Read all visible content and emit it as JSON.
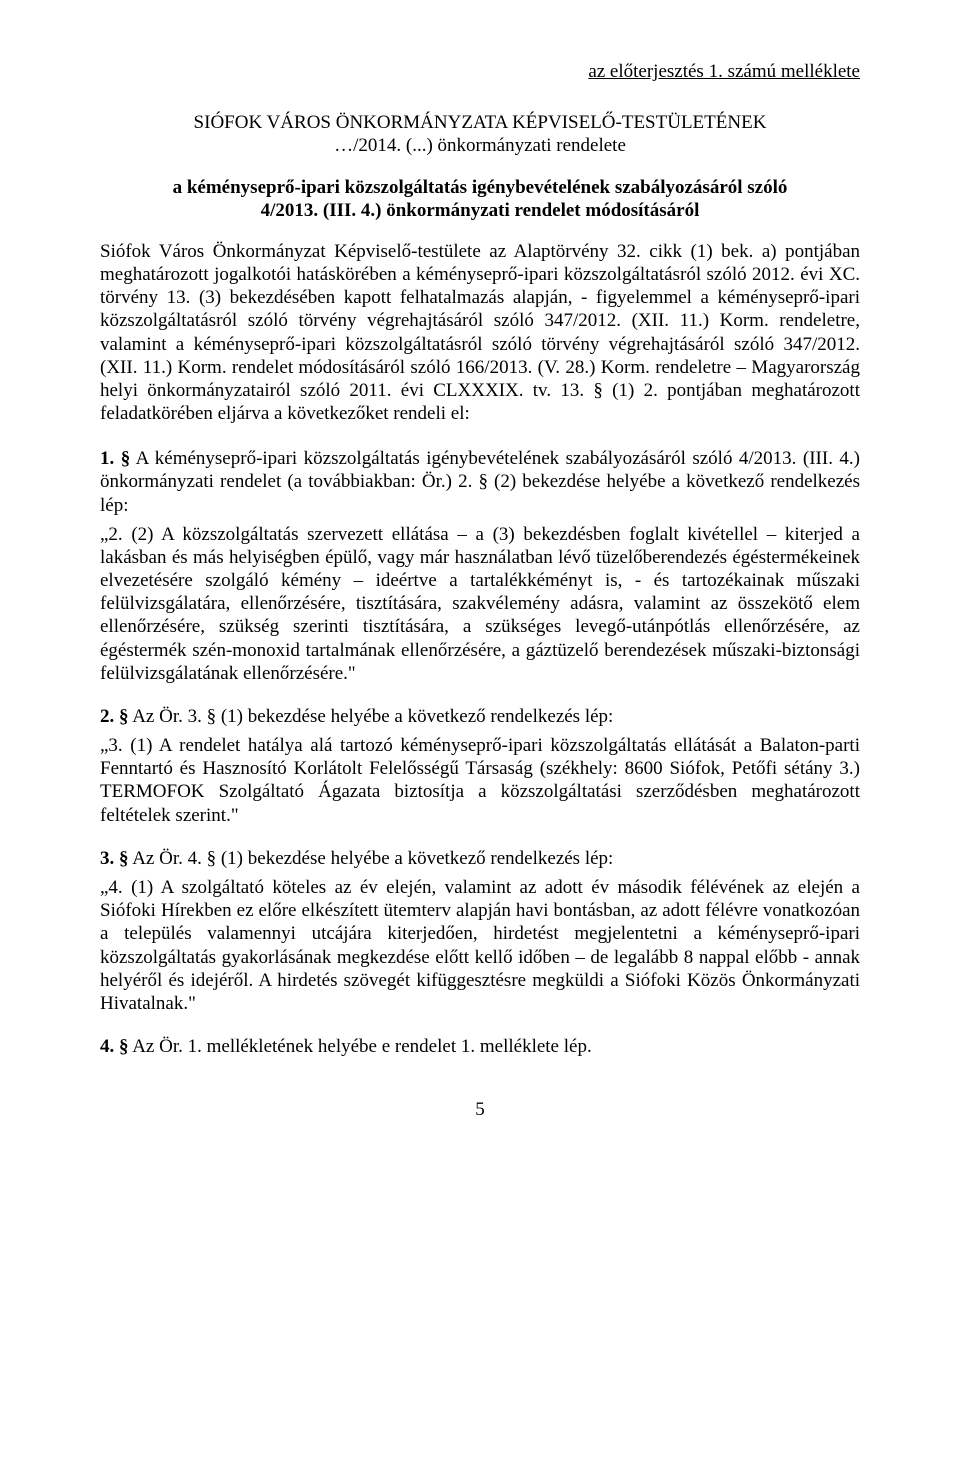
{
  "attachment": "az előterjesztés 1. számú melléklete",
  "title_line1": "SIÓFOK VÁROS ÖNKORMÁNYZATA KÉPVISELŐ-TESTÜLETÉNEK",
  "title_line2": "…/2014. (...) önkormányzati rendelete",
  "subtitle_line1": "a kéményseprő-ipari közszolgáltatás igénybevételének szabályozásáról szóló",
  "subtitle_line2": "4/2013. (III. 4.) önkormányzati rendelet módosításáról",
  "preamble": "Siófok Város Önkormányzat Képviselő-testülete az Alaptörvény 32. cikk (1) bek. a) pontjában meghatározott jogalkotói hatáskörében a kéményseprő-ipari közszolgáltatásról szóló 2012. évi XC. törvény 13. (3) bekezdésében kapott felhatalmazás alapján, - figyelemmel a kéményseprő-ipari közszolgáltatásról szóló törvény végrehajtásáról szóló 347/2012. (XII. 11.) Korm. rendeletre, valamint a kéményseprő-ipari közszolgáltatásról szóló törvény végrehajtásáról szóló 347/2012. (XII. 11.) Korm. rendelet módosításáról szóló 166/2013. (V. 28.) Korm. rendeletre – Magyarország helyi önkormányzatairól szóló 2011. évi CLXXXIX. tv. 13. § (1) 2. pontjában meghatározott feladatkörében eljárva a következőket rendeli el:",
  "item1_number": "1. §",
  "item1_text": " A kéményseprő-ipari közszolgáltatás igénybevételének szabályozásáról szóló 4/2013. (III. 4.) önkormányzati rendelet (a továbbiakban: Ör.) 2. § (2) bekezdése helyébe a következő rendelkezés lép:",
  "item1_quote": "„2. (2) A közszolgáltatás szervezett ellátása – a (3) bekezdésben foglalt kivétellel – kiterjed a lakásban és más helyiségben épülő, vagy már használatban lévő tüzelőberendezés égéstermékeinek elvezetésére szolgáló kémény – ideértve a tartalékkéményt is, - és tartozékainak műszaki felülvizsgálatára, ellenőrzésére, tisztítására, szakvélemény adásra, valamint az összekötő elem ellenőrzésére, szükség szerinti tisztítására, a szükséges levegő-utánpótlás ellenőrzésére, az égéstermék szén-monoxid tartalmának ellenőrzésére, a gáztüzelő berendezések műszaki-biztonsági felülvizsgálatának ellenőrzésére.\"",
  "item2_number": "2. §",
  "item2_text": " Az Ör. 3. § (1) bekezdése helyébe a következő rendelkezés lép:",
  "item2_quote": "„3. (1) A rendelet hatálya alá tartozó kéményseprő-ipari közszolgáltatás ellátását a Balaton-parti Fenntartó és Hasznosító Korlátolt Felelősségű Társaság (székhely: 8600 Siófok, Petőfi sétány 3.) TERMOFOK Szolgáltató Ágazata biztosítja a közszolgáltatási szerződésben meghatározott feltételek szerint.\"",
  "item3_number": "3. §",
  "item3_text": " Az Ör. 4. § (1) bekezdése helyébe a következő rendelkezés lép:",
  "item3_quote": "„4. (1) A szolgáltató köteles az év elején, valamint az adott év második félévének az elején a Siófoki Hírekben ez előre elkészített ütemterv alapján havi bontásban, az adott félévre vonatkozóan a település valamennyi utcájára kiterjedően, hirdetést megjelentetni a kéményseprő-ipari közszolgáltatás gyakorlásának megkezdése előtt kellő időben – de legalább 8 nappal előbb - annak helyéről és idejéről. A hirdetés szövegét kifüggesztésre megküldi a Siófoki Közös Önkormányzati Hivatalnak.\"",
  "item4_number": "4. §",
  "item4_text": " Az Ör. 1. mellékletének helyébe e rendelet 1. melléklete lép.",
  "page_number": "5"
}
